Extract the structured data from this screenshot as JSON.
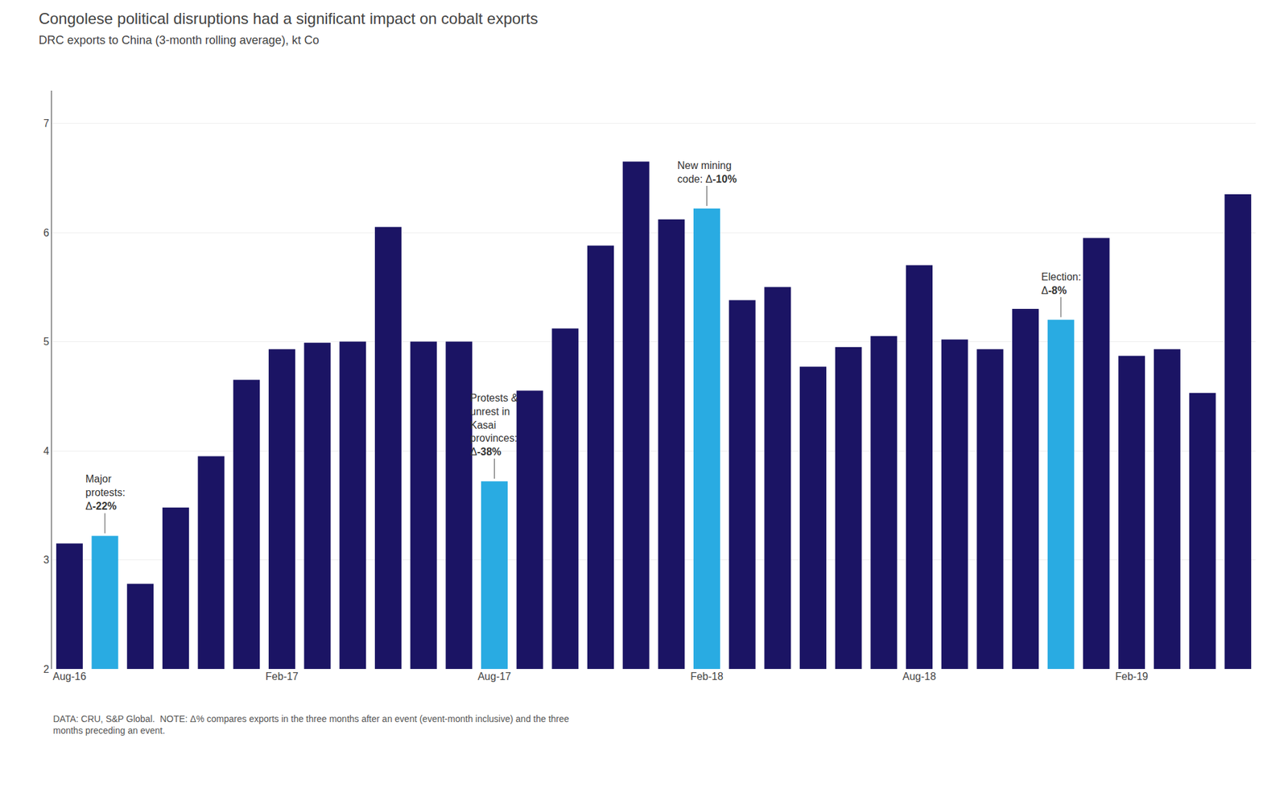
{
  "chart_data": {
    "type": "bar",
    "title": "Congolese political disruptions had a significant impact on cobalt exports",
    "subtitle": "DRC exports to China (3-month rolling average), kt Co",
    "footnote": "DATA: CRU, S&P Global.  NOTE: Δ% compares exports in the three months after an event (event-month inclusive) and the three\nmonths preceding an event.",
    "categories": [
      "Aug-16",
      null,
      null,
      null,
      null,
      null,
      "Feb-17",
      null,
      null,
      null,
      null,
      null,
      "Aug-17",
      null,
      null,
      null,
      null,
      null,
      "Feb-18",
      null,
      null,
      null,
      null,
      null,
      "Aug-18",
      null,
      null,
      null,
      null,
      null,
      "Feb-19",
      null,
      null,
      null
    ],
    "values": [
      3.15,
      3.22,
      2.78,
      3.48,
      3.95,
      4.65,
      4.93,
      4.99,
      5.0,
      6.05,
      5.0,
      5.0,
      3.72,
      4.55,
      5.12,
      5.88,
      6.65,
      6.12,
      6.22,
      5.38,
      5.5,
      4.77,
      4.95,
      5.05,
      5.7,
      5.02,
      4.93,
      5.3,
      5.2,
      5.95,
      4.87,
      4.93,
      4.53,
      6.35
    ],
    "colors": [
      "#1b1464",
      "#29abe2",
      "#1b1464",
      "#1b1464",
      "#1b1464",
      "#1b1464",
      "#1b1464",
      "#1b1464",
      "#1b1464",
      "#1b1464",
      "#1b1464",
      "#1b1464",
      "#29abe2",
      "#1b1464",
      "#1b1464",
      "#1b1464",
      "#1b1464",
      "#1b1464",
      "#29abe2",
      "#1b1464",
      "#1b1464",
      "#1b1464",
      "#1b1464",
      "#1b1464",
      "#1b1464",
      "#1b1464",
      "#1b1464",
      "#1b1464",
      "#29abe2",
      "#1b1464",
      "#1b1464",
      "#1b1464",
      "#1b1464",
      "#1b1464"
    ],
    "ylim": [
      2,
      7.3
    ],
    "yticks": [
      2,
      3,
      4,
      5,
      6,
      7
    ],
    "grid": true,
    "annotations": [
      {
        "index": 1,
        "text": "Major\nprotests:\nΔ-22%"
      },
      {
        "index": 12,
        "text": "Protests &\nunrest in\nKasai\nprovinces:\nΔ-38%"
      },
      {
        "index": 18,
        "text": "New mining\ncode: Δ-10%"
      },
      {
        "index": 28,
        "text": "Election:\nΔ-8%"
      }
    ]
  }
}
